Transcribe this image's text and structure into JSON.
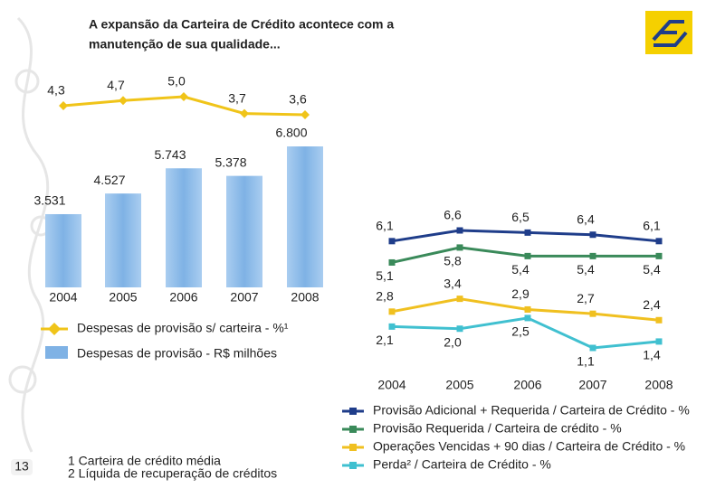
{
  "header": {
    "title": [
      "A expansão da Carteira de Crédito acontece com a",
      "manutenção de sua qualidade..."
    ]
  },
  "chart_data": [
    {
      "type": "combo",
      "categories": [
        "2004",
        "2005",
        "2006",
        "2007",
        "2008"
      ],
      "series": [
        {
          "name": "Despesas de provisão s/ carteira - %¹",
          "type": "line",
          "color": "#f0c419",
          "values": [
            4.3,
            4.7,
            5.0,
            3.7,
            3.6
          ],
          "value_labels": [
            "4,3",
            "4,7",
            "5,0",
            "3,7",
            "3,6"
          ]
        },
        {
          "name": "Despesas de provisão - R$ milhões",
          "type": "bar",
          "color": "#7fb2e5",
          "values": [
            3531,
            4527,
            5743,
            5378,
            6800
          ],
          "value_labels": [
            "3.531",
            "4.527",
            "5.743",
            "5.378",
            "6.800"
          ]
        }
      ]
    },
    {
      "type": "line",
      "categories": [
        "2004",
        "2005",
        "2006",
        "2007",
        "2008"
      ],
      "series": [
        {
          "name": "Provisão Adicional + Requerida / Carteira de Crédito - %",
          "color": "#1f3d8a",
          "values": [
            6.1,
            6.6,
            6.5,
            6.4,
            6.1
          ],
          "value_labels": [
            "6,1",
            "6,6",
            "6,5",
            "6,4",
            "6,1"
          ]
        },
        {
          "name": "Provisão Requerida / Carteira de crédito - %",
          "color": "#3a8a5a",
          "values": [
            5.1,
            5.8,
            5.4,
            5.4,
            5.4
          ],
          "value_labels": [
            "5,1",
            "5,8",
            "5,4",
            "5,4",
            "5,4"
          ]
        },
        {
          "name": "Operações Vencidas + 90 dias / Carteira de Crédito - %",
          "color": "#f0c020",
          "values": [
            2.8,
            3.4,
            2.9,
            2.7,
            2.4
          ],
          "value_labels": [
            "2,8",
            "3,4",
            "2,9",
            "2,7",
            "2,4"
          ]
        },
        {
          "name": "Perda² / Carteira de Crédito - %",
          "color": "#40c0d0",
          "values": [
            2.1,
            2.0,
            2.5,
            1.1,
            1.4
          ],
          "value_labels": [
            "2,1",
            "2,0",
            "2,5",
            "1,1",
            "1,4"
          ]
        }
      ]
    }
  ],
  "footnotes": [
    "1 Carteira de crédito média",
    "2 Líquida de recuperação de créditos"
  ],
  "page_number": "13"
}
